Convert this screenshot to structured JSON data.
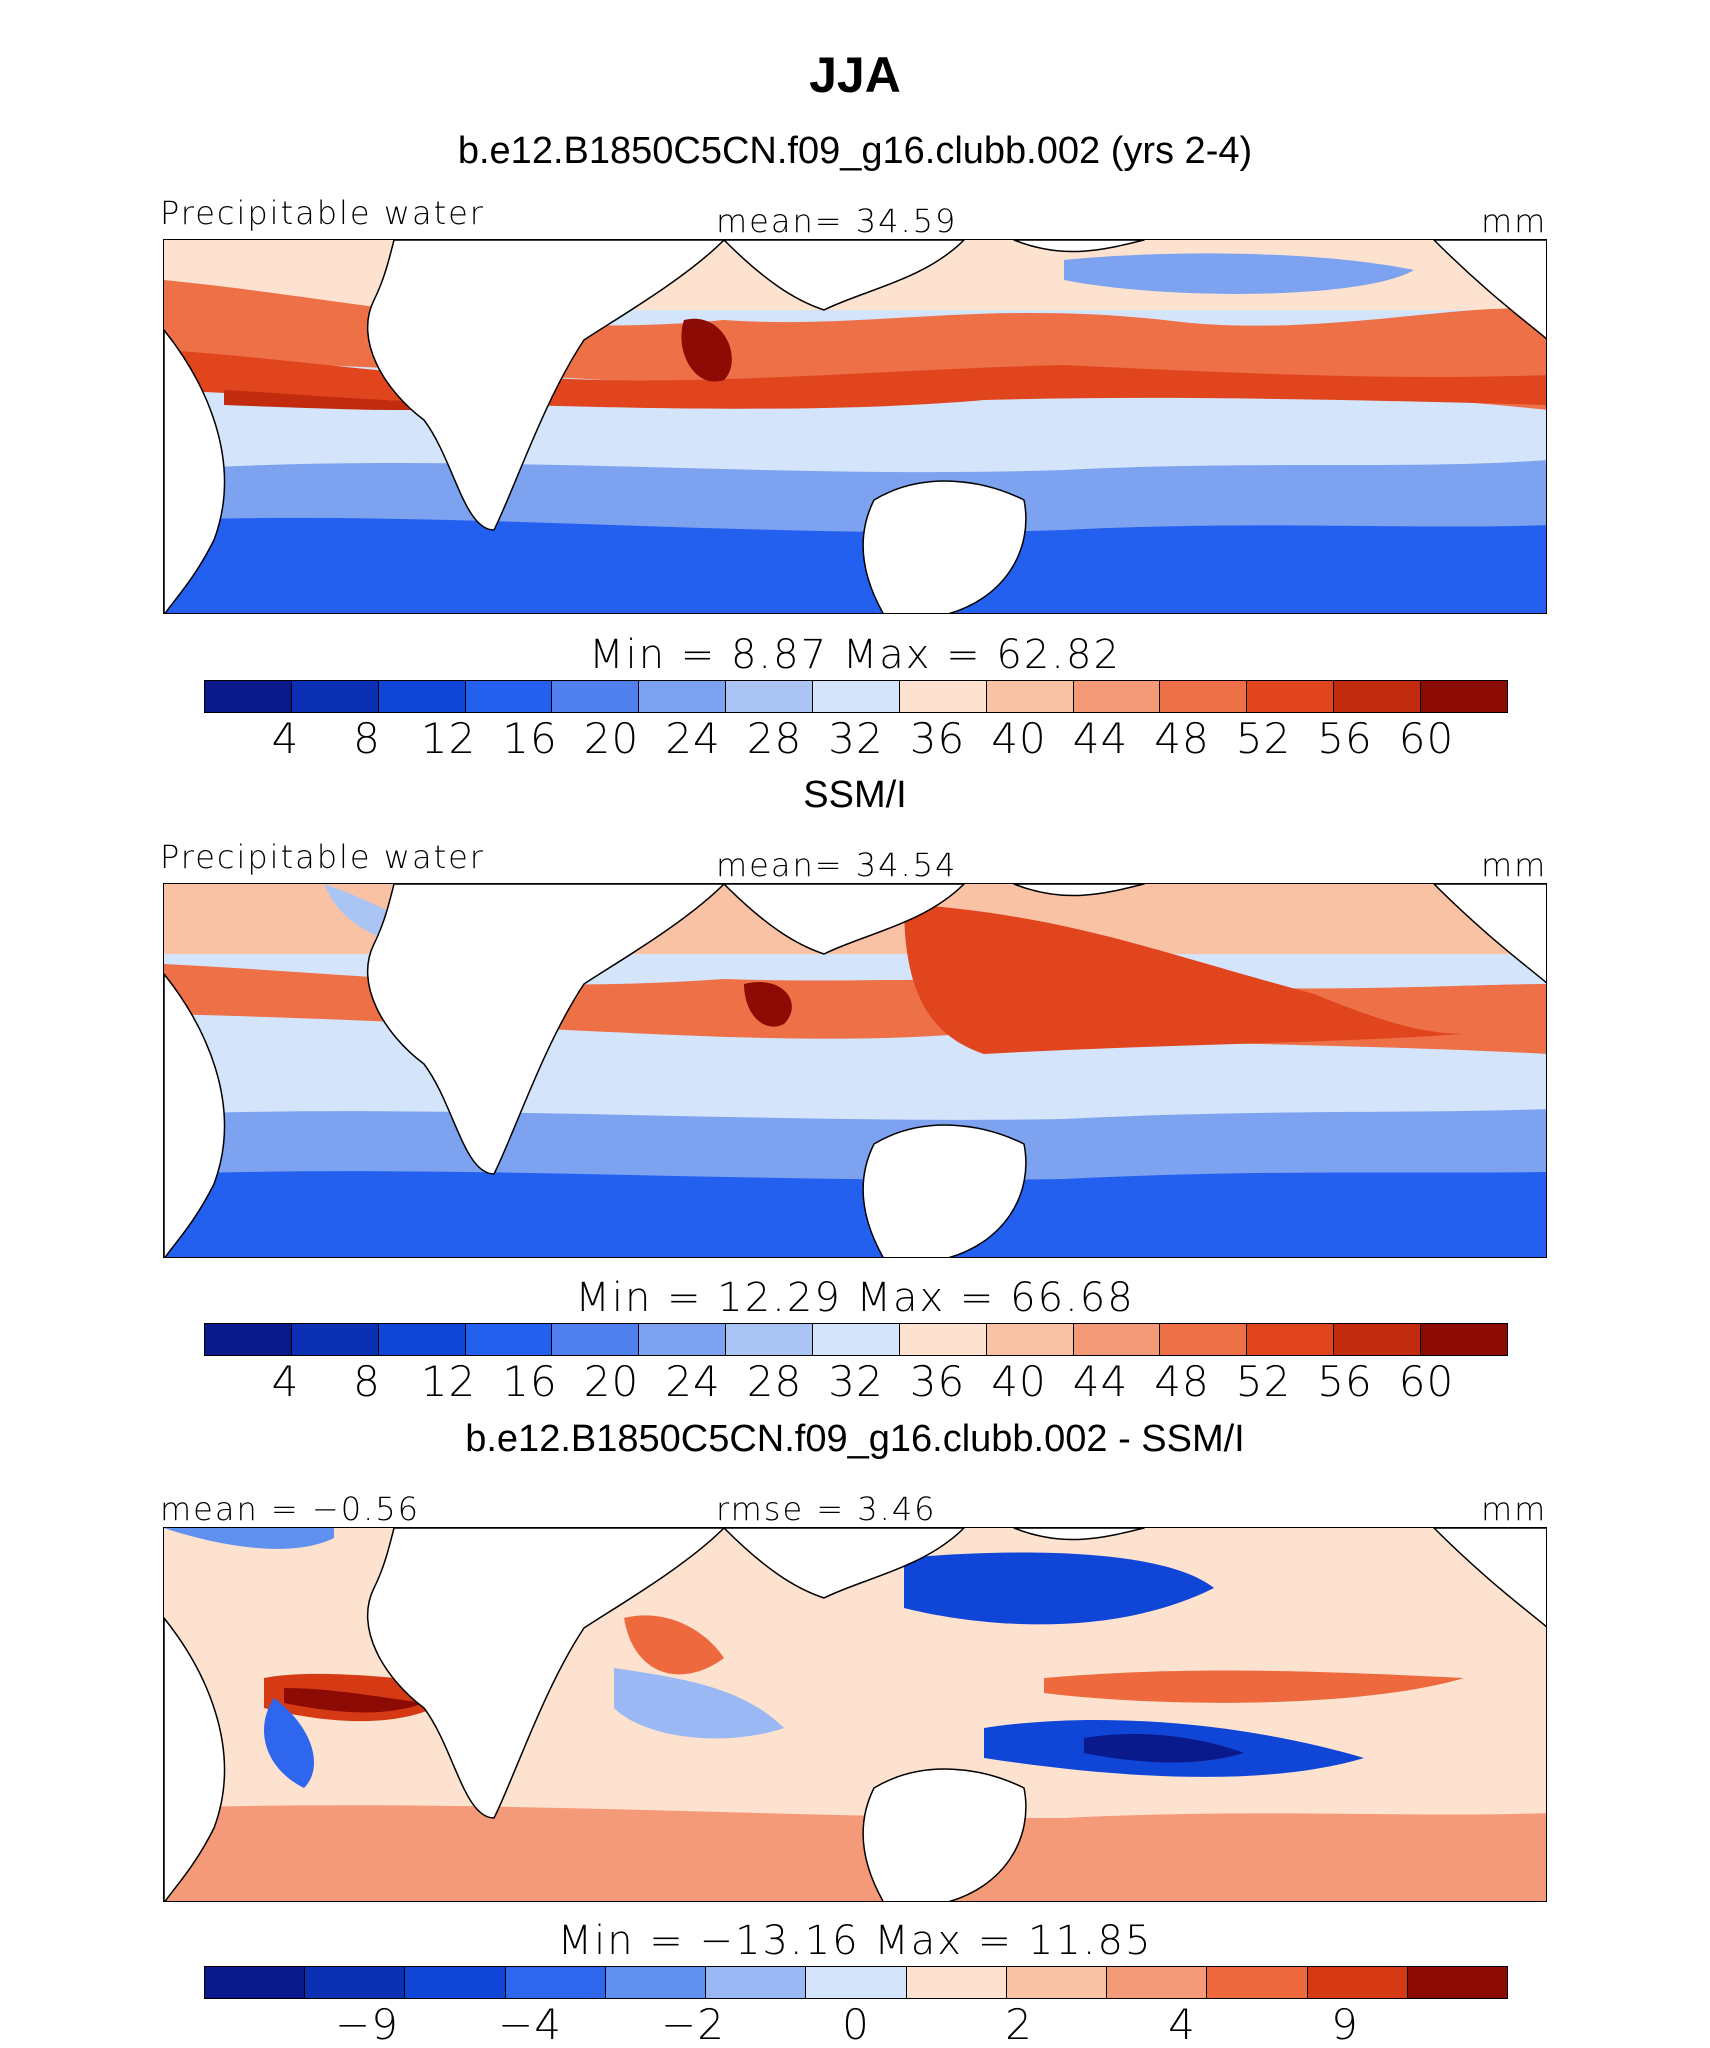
{
  "title": "JJA",
  "colors": {
    "seq": [
      "#0a1a8c",
      "#0b30b4",
      "#1046d8",
      "#2460ef",
      "#4f80ee",
      "#7da2f0",
      "#aac4f4",
      "#d4e4fa",
      "#fde2cf",
      "#f9c2a5",
      "#f59a78",
      "#ee7046",
      "#e0451e",
      "#c22b0e",
      "#8c0b05"
    ],
    "diff": [
      "#0a1a8c",
      "#0b30b4",
      "#1046d8",
      "#2f66ee",
      "#6090f0",
      "#9ab8f4",
      "#d4e4fa",
      "#fde2cf",
      "#f9c2a5",
      "#f59a78",
      "#ee6a3e",
      "#d63a14",
      "#8c0b05"
    ],
    "land": "#ffffff",
    "coast": "#000000"
  },
  "panels": [
    {
      "title": "b.e12.B1850C5CN.f09_g16.clubb.002 (yrs 2-4)",
      "left_label": "Precipitable water",
      "center_label": "mean=   34.59",
      "right_label": "mm",
      "minmax": "Min  =     8.87  Max  =    62.82",
      "colorbar_ticks": [
        "4",
        "8",
        "12",
        "16",
        "20",
        "24",
        "28",
        "32",
        "36",
        "40",
        "44",
        "48",
        "52",
        "56",
        "60"
      ]
    },
    {
      "title": "SSM/I",
      "left_label": "Precipitable water",
      "center_label": "mean=   34.54",
      "right_label": "mm",
      "minmax": "Min  =   12.29  Max  =    66.68",
      "colorbar_ticks": [
        "4",
        "8",
        "12",
        "16",
        "20",
        "24",
        "28",
        "32",
        "36",
        "40",
        "44",
        "48",
        "52",
        "56",
        "60"
      ]
    },
    {
      "title": "b.e12.B1850C5CN.f09_g16.clubb.002 - SSM/I",
      "left_label": "mean  =   −0.56",
      "center_label": "rmse  =     3.46",
      "right_label": "mm",
      "minmax": "Min  =  −13.16  Max  =    11.85",
      "colorbar_ticks": [
        "−9",
        "−4",
        "−2",
        "0",
        "2",
        "4",
        "9"
      ]
    }
  ],
  "chart_data": [
    {
      "type": "heatmap",
      "title": "b.e12.B1850C5CN.f09_g16.clubb.002 (yrs 2-4)",
      "variable": "Precipitable water",
      "units": "mm",
      "mean": 34.59,
      "min": 8.87,
      "max": 62.82,
      "levels": [
        4,
        8,
        12,
        16,
        20,
        24,
        28,
        32,
        36,
        40,
        44,
        48,
        52,
        56,
        60
      ]
    },
    {
      "type": "heatmap",
      "title": "SSM/I",
      "variable": "Precipitable water",
      "units": "mm",
      "mean": 34.54,
      "min": 12.29,
      "max": 66.68,
      "levels": [
        4,
        8,
        12,
        16,
        20,
        24,
        28,
        32,
        36,
        40,
        44,
        48,
        52,
        56,
        60
      ]
    },
    {
      "type": "heatmap",
      "title": "b.e12.B1850C5CN.f09_g16.clubb.002 - SSM/I",
      "units": "mm",
      "mean": -0.56,
      "rmse": 3.46,
      "min": -13.16,
      "max": 11.85,
      "levels": [
        -9,
        -4,
        -2,
        0,
        2,
        4,
        9
      ]
    }
  ]
}
